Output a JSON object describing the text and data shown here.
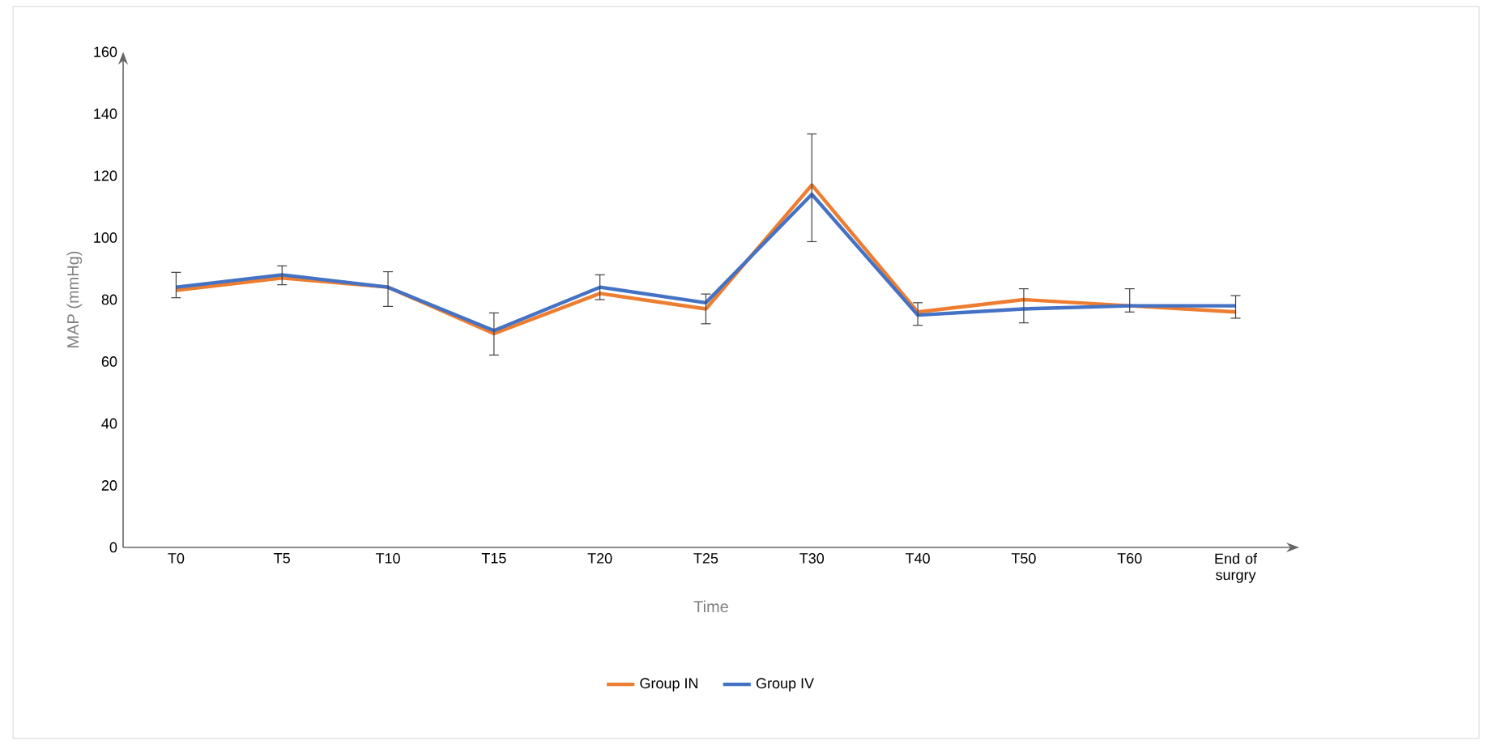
{
  "chart_data": {
    "type": "line",
    "xlabel": "Time",
    "ylabel": "MAP (mmHg)",
    "categories": [
      "T0",
      "T5",
      "T10",
      "T15",
      "T20",
      "T25",
      "T30",
      "T40",
      "T50",
      "T60",
      "End of surgry"
    ],
    "series": [
      {
        "name": "Group IN",
        "color": "#ed7d31",
        "values": [
          83,
          87,
          84,
          69,
          82,
          77,
          117,
          76,
          80,
          78,
          76
        ]
      },
      {
        "name": "Group IV",
        "color": "#4472c4",
        "values": [
          84,
          88,
          84,
          70,
          84,
          79,
          114,
          75,
          77,
          78,
          78
        ],
        "errors": [
          [
            80.6,
            88.8
          ],
          [
            84.8,
            90.9
          ],
          [
            77.8,
            89
          ],
          [
            62.1,
            75.7
          ],
          [
            80,
            88
          ],
          [
            72.2,
            81.8
          ],
          [
            98.7,
            133.5
          ],
          [
            71.7,
            79
          ],
          [
            72.5,
            83.5
          ],
          [
            76,
            83.5
          ],
          [
            74,
            81.3
          ]
        ]
      }
    ],
    "ylim": [
      0,
      160
    ],
    "yticks": [
      0,
      20,
      40,
      60,
      80,
      100,
      120,
      140,
      160
    ],
    "grid": false,
    "legend": "bottom",
    "marker": "none",
    "line_style": "solid"
  }
}
